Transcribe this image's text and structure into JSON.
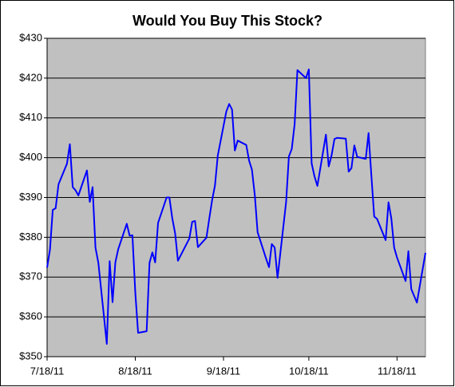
{
  "chart_data": {
    "type": "line",
    "title": "Would You Buy This Stock?",
    "x": [
      "2011-07-18",
      "2011-07-19",
      "2011-07-20",
      "2011-07-21",
      "2011-07-22",
      "2011-07-25",
      "2011-07-26",
      "2011-07-27",
      "2011-07-28",
      "2011-07-29",
      "2011-08-01",
      "2011-08-02",
      "2011-08-03",
      "2011-08-04",
      "2011-08-05",
      "2011-08-08",
      "2011-08-09",
      "2011-08-10",
      "2011-08-11",
      "2011-08-12",
      "2011-08-15",
      "2011-08-16",
      "2011-08-17",
      "2011-08-18",
      "2011-08-19",
      "2011-08-22",
      "2011-08-23",
      "2011-08-24",
      "2011-08-25",
      "2011-08-26",
      "2011-08-29",
      "2011-08-30",
      "2011-08-31",
      "2011-09-01",
      "2011-09-02",
      "2011-09-06",
      "2011-09-07",
      "2011-09-08",
      "2011-09-09",
      "2011-09-12",
      "2011-09-13",
      "2011-09-14",
      "2011-09-15",
      "2011-09-16",
      "2011-09-19",
      "2011-09-20",
      "2011-09-21",
      "2011-09-22",
      "2011-09-23",
      "2011-09-26",
      "2011-09-27",
      "2011-09-28",
      "2011-09-29",
      "2011-09-30",
      "2011-10-03",
      "2011-10-04",
      "2011-10-05",
      "2011-10-06",
      "2011-10-07",
      "2011-10-10",
      "2011-10-11",
      "2011-10-12",
      "2011-10-13",
      "2011-10-14",
      "2011-10-17",
      "2011-10-18",
      "2011-10-19",
      "2011-10-20",
      "2011-10-21",
      "2011-10-24",
      "2011-10-25",
      "2011-10-26",
      "2011-10-27",
      "2011-10-28",
      "2011-10-31",
      "2011-11-01",
      "2011-11-02",
      "2011-11-03",
      "2011-11-04",
      "2011-11-07",
      "2011-11-08",
      "2011-11-09",
      "2011-11-10",
      "2011-11-11",
      "2011-11-14",
      "2011-11-15",
      "2011-11-16",
      "2011-11-17",
      "2011-11-18",
      "2011-11-21",
      "2011-11-22",
      "2011-11-23",
      "2011-11-25",
      "2011-11-28"
    ],
    "series": [
      {
        "color": "#0000ff",
        "values": [
          372.4,
          376.9,
          386.9,
          387.3,
          393.3,
          398.5,
          403.4,
          392.6,
          391.8,
          390.5,
          396.8,
          388.9,
          392.6,
          377.4,
          373.6,
          353.2,
          374.0,
          363.7,
          373.7,
          377.0,
          383.4,
          380.4,
          380.5,
          366.1,
          356.0,
          356.4,
          373.6,
          376.2,
          373.7,
          383.6,
          390.0,
          390.0,
          384.8,
          381.0,
          374.1,
          379.7,
          383.9,
          384.1,
          377.5,
          379.9,
          384.6,
          389.3,
          393.0,
          400.5,
          411.6,
          413.5,
          412.1,
          401.8,
          404.3,
          403.2,
          399.3,
          397.0,
          390.6,
          381.3,
          374.6,
          372.5,
          378.3,
          377.4,
          369.8,
          388.8,
          400.3,
          402.2,
          408.4,
          422.0,
          420.0,
          422.2,
          398.6,
          395.3,
          392.9,
          405.8,
          397.8,
          400.6,
          404.7,
          405.0,
          404.8,
          396.5,
          397.4,
          403.1,
          400.2,
          399.7,
          406.2,
          395.3,
          385.2,
          384.6,
          379.3,
          388.8,
          384.8,
          377.4,
          374.9,
          369.0,
          376.5,
          367.0,
          363.6,
          376.1
        ]
      }
    ],
    "xlim": [
      "2011-07-18",
      "2011-11-28"
    ],
    "xticks": [
      {
        "value": "2011-07-18",
        "label": "7/18/11"
      },
      {
        "value": "2011-08-18",
        "label": "8/18/11"
      },
      {
        "value": "2011-09-18",
        "label": "9/18/11"
      },
      {
        "value": "2011-10-18",
        "label": "10/18/11"
      },
      {
        "value": "2011-11-18",
        "label": "11/18/11"
      }
    ],
    "ylim": [
      350,
      430
    ],
    "yticks": [
      {
        "value": 350,
        "label": "$350"
      },
      {
        "value": 360,
        "label": "$360"
      },
      {
        "value": 370,
        "label": "$370"
      },
      {
        "value": 380,
        "label": "$380"
      },
      {
        "value": 390,
        "label": "$390"
      },
      {
        "value": 400,
        "label": "$400"
      },
      {
        "value": 410,
        "label": "$410"
      },
      {
        "value": 420,
        "label": "$420"
      },
      {
        "value": 430,
        "label": "$430"
      }
    ],
    "grid": true,
    "plot_background": "#c0c0c0"
  }
}
